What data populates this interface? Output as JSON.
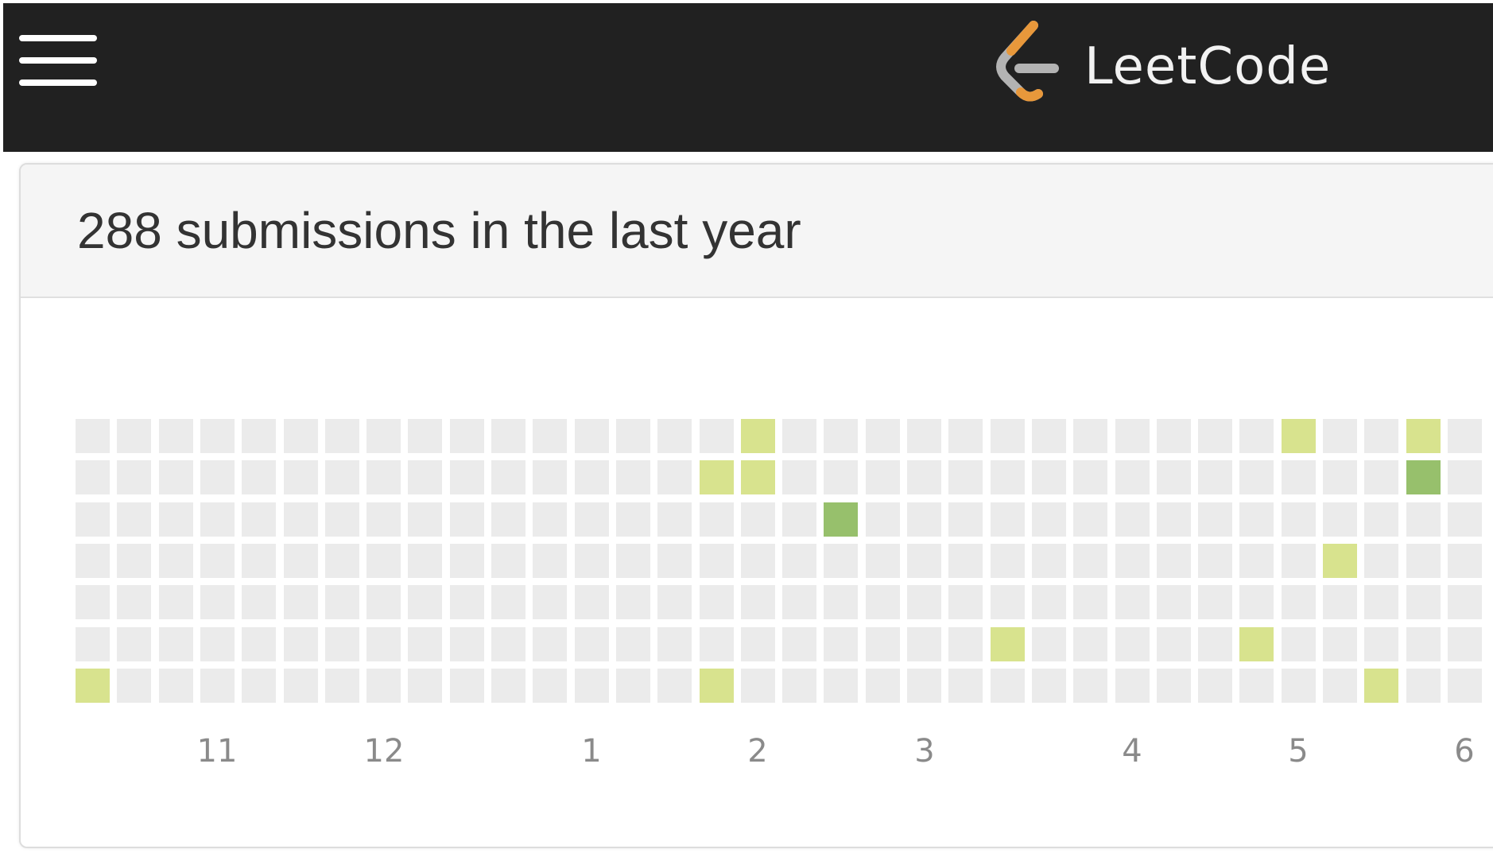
{
  "header": {
    "menu_icon": "hamburger-menu-icon",
    "logo_icon": "leetcode-logo-icon",
    "logo_text": "LeetCode",
    "colors": {
      "background": "#212121",
      "logo_orange": "#e8983b",
      "logo_gray": "#b3b3b3"
    }
  },
  "panel": {
    "title": "288 submissions in the last year"
  },
  "calendar": {
    "weeks_visible": 35,
    "days_per_week": 7,
    "colors": {
      "empty": "#ebebeb",
      "light": "#d8e38e",
      "dark": "#97c06c"
    },
    "active_cells": [
      {
        "week": 0,
        "day": 6,
        "level": "light"
      },
      {
        "week": 15,
        "day": 1,
        "level": "light"
      },
      {
        "week": 15,
        "day": 6,
        "level": "light"
      },
      {
        "week": 16,
        "day": 0,
        "level": "light"
      },
      {
        "week": 16,
        "day": 1,
        "level": "light"
      },
      {
        "week": 18,
        "day": 2,
        "level": "dark"
      },
      {
        "week": 22,
        "day": 5,
        "level": "light"
      },
      {
        "week": 28,
        "day": 5,
        "level": "light"
      },
      {
        "week": 29,
        "day": 0,
        "level": "light"
      },
      {
        "week": 30,
        "day": 3,
        "level": "light"
      },
      {
        "week": 31,
        "day": 6,
        "level": "light"
      },
      {
        "week": 32,
        "day": 0,
        "level": "light"
      },
      {
        "week": 32,
        "day": 1,
        "level": "dark"
      }
    ],
    "month_labels": [
      {
        "text": "11",
        "week": 3
      },
      {
        "text": "12",
        "week": 7
      },
      {
        "text": "1",
        "week": 12
      },
      {
        "text": "2",
        "week": 16
      },
      {
        "text": "3",
        "week": 20
      },
      {
        "text": "4",
        "week": 25
      },
      {
        "text": "5",
        "week": 29
      },
      {
        "text": "6",
        "week": 33
      }
    ]
  }
}
